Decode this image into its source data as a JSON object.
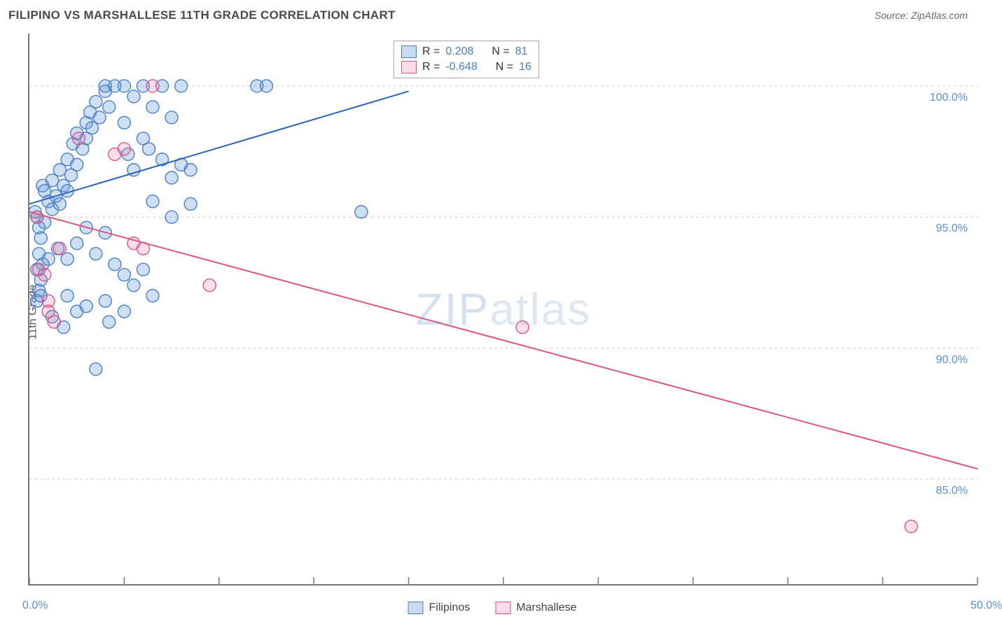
{
  "title": "FILIPINO VS MARSHALLESE 11TH GRADE CORRELATION CHART",
  "source_label": "Source: ZipAtlas.com",
  "ylabel": "11th Grade",
  "watermark": {
    "bold": "ZIP",
    "thin": "atlas"
  },
  "stats_legend": {
    "rows": [
      {
        "swatch": "blue",
        "r_label": "R =",
        "r": "0.208",
        "n_label": "N =",
        "n": "81"
      },
      {
        "swatch": "pink",
        "r_label": "R =",
        "r": "-0.648",
        "n_label": "N =",
        "n": "16"
      }
    ]
  },
  "bottom_legend": [
    {
      "swatch": "blue",
      "label": "Filipinos"
    },
    {
      "swatch": "pink",
      "label": "Marshallese"
    }
  ],
  "chart": {
    "type": "scatter",
    "xlim": [
      0,
      50
    ],
    "ylim": [
      81,
      102
    ],
    "x_ticks": [
      0,
      5,
      10,
      15,
      20,
      25,
      30,
      35,
      40,
      45,
      50
    ],
    "x_tick_labels": [
      {
        "pos": 0,
        "text": "0.0%"
      },
      {
        "pos": 50,
        "text": "50.0%"
      }
    ],
    "y_grid": [
      85,
      90,
      95,
      100
    ],
    "y_tick_labels": [
      {
        "pos": 85,
        "text": "85.0%"
      },
      {
        "pos": 90,
        "text": "90.0%"
      },
      {
        "pos": 95,
        "text": "95.0%"
      },
      {
        "pos": 100,
        "text": "100.0%"
      }
    ],
    "colors": {
      "blue_fill": "rgba(96,150,214,0.30)",
      "blue_stroke": "#4a7fc4",
      "pink_fill": "rgba(232,110,150,0.22)",
      "pink_stroke": "#d6588a",
      "blue_line": "#2a62b8",
      "pink_line": "#e0547f",
      "grid": "#cfcfcf",
      "axis": "#777777",
      "tick_label": "#5b8fd6",
      "bg": "#ffffff"
    },
    "marker_radius": 9,
    "line_width": 2,
    "regression_lines": {
      "blue": {
        "x1": 0,
        "y1": 95.5,
        "x2": 20,
        "y2": 99.8
      },
      "pink": {
        "x1": 0,
        "y1": 95.2,
        "x2": 50,
        "y2": 85.4
      }
    },
    "series": {
      "blue": [
        [
          0.3,
          95.2
        ],
        [
          0.4,
          95.0
        ],
        [
          0.5,
          94.6
        ],
        [
          0.6,
          94.2
        ],
        [
          0.8,
          94.8
        ],
        [
          0.5,
          93.6
        ],
        [
          0.7,
          93.2
        ],
        [
          0.4,
          93.0
        ],
        [
          0.6,
          92.6
        ],
        [
          0.5,
          92.2
        ],
        [
          0.7,
          96.2
        ],
        [
          0.8,
          96.0
        ],
        [
          1.0,
          95.6
        ],
        [
          1.2,
          95.3
        ],
        [
          1.2,
          96.4
        ],
        [
          1.4,
          95.8
        ],
        [
          1.6,
          95.5
        ],
        [
          1.6,
          96.8
        ],
        [
          1.8,
          96.2
        ],
        [
          2.0,
          96.0
        ],
        [
          2.0,
          97.2
        ],
        [
          2.2,
          96.6
        ],
        [
          2.3,
          97.8
        ],
        [
          2.5,
          97.0
        ],
        [
          2.5,
          98.2
        ],
        [
          2.8,
          97.6
        ],
        [
          3.0,
          98.0
        ],
        [
          3.0,
          98.6
        ],
        [
          3.3,
          98.4
        ],
        [
          3.2,
          99.0
        ],
        [
          3.5,
          99.4
        ],
        [
          3.7,
          98.8
        ],
        [
          4.0,
          99.8
        ],
        [
          4.0,
          100.0
        ],
        [
          4.5,
          100.0
        ],
        [
          4.2,
          99.2
        ],
        [
          5.0,
          100.0
        ],
        [
          5.0,
          98.6
        ],
        [
          5.2,
          97.4
        ],
        [
          5.5,
          99.6
        ],
        [
          5.5,
          96.8
        ],
        [
          6.0,
          98.0
        ],
        [
          6.0,
          100.0
        ],
        [
          6.3,
          97.6
        ],
        [
          6.5,
          99.2
        ],
        [
          7.0,
          100.0
        ],
        [
          7.0,
          97.2
        ],
        [
          7.5,
          96.5
        ],
        [
          7.5,
          98.8
        ],
        [
          8.0,
          97.0
        ],
        [
          8.0,
          100.0
        ],
        [
          8.5,
          96.8
        ],
        [
          8.5,
          95.5
        ],
        [
          12.0,
          100.0
        ],
        [
          12.5,
          100.0
        ],
        [
          1.0,
          93.4
        ],
        [
          1.5,
          93.8
        ],
        [
          2.0,
          93.4
        ],
        [
          2.5,
          94.0
        ],
        [
          3.0,
          94.6
        ],
        [
          3.5,
          93.6
        ],
        [
          4.0,
          94.4
        ],
        [
          4.5,
          93.2
        ],
        [
          5.0,
          92.8
        ],
        [
          5.5,
          92.4
        ],
        [
          4.0,
          91.8
        ],
        [
          2.0,
          92.0
        ],
        [
          2.5,
          91.4
        ],
        [
          6.0,
          93.0
        ],
        [
          6.5,
          92.0
        ],
        [
          1.2,
          91.2
        ],
        [
          1.8,
          90.8
        ],
        [
          3.0,
          91.6
        ],
        [
          4.2,
          91.0
        ],
        [
          5.0,
          91.4
        ],
        [
          3.5,
          89.2
        ],
        [
          0.4,
          91.8
        ],
        [
          0.6,
          92.0
        ],
        [
          17.5,
          95.2
        ],
        [
          6.5,
          95.6
        ],
        [
          7.5,
          95.0
        ]
      ],
      "pink": [
        [
          0.5,
          93.0
        ],
        [
          0.8,
          92.8
        ],
        [
          1.0,
          91.8
        ],
        [
          1.3,
          91.0
        ],
        [
          0.4,
          95.0
        ],
        [
          1.6,
          93.8
        ],
        [
          2.6,
          98.0
        ],
        [
          4.5,
          97.4
        ],
        [
          5.0,
          97.6
        ],
        [
          6.5,
          100.0
        ],
        [
          5.5,
          94.0
        ],
        [
          6.0,
          93.8
        ],
        [
          9.5,
          92.4
        ],
        [
          26.0,
          90.8
        ],
        [
          46.5,
          83.2
        ],
        [
          1.0,
          91.4
        ]
      ]
    }
  }
}
